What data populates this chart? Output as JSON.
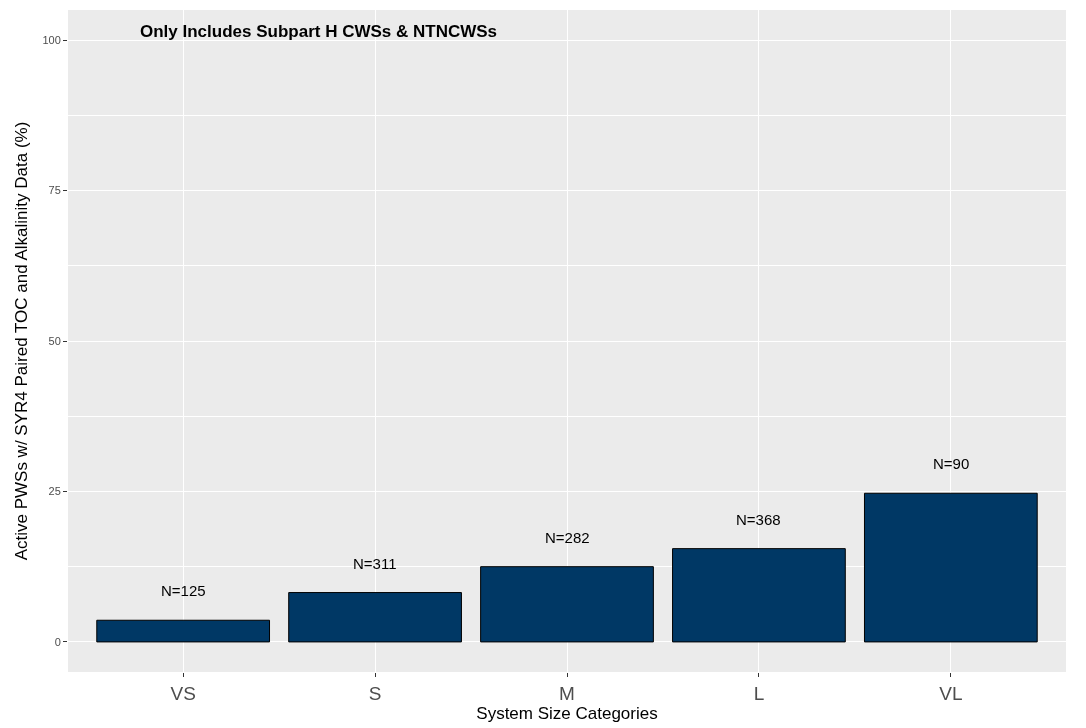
{
  "chart_data": {
    "type": "bar",
    "xlabel": "System Size Categories",
    "ylabel": "Active PWSs w/ SYR4 Paired TOC and Alkalinity Data (%)",
    "annotations": [
      "Only Includes Subpart H CWSs & NTNCWSs",
      {
        "text": "N=125",
        "x": "VS",
        "y": 3.6
      },
      {
        "text": "N=311",
        "x": "S",
        "y": 8.2
      },
      {
        "text": "N=282",
        "x": "M",
        "y": 12.5
      },
      {
        "text": "N=368",
        "x": "L",
        "y": 15.5
      },
      {
        "text": "N=90",
        "x": "VL",
        "y": 24.7
      }
    ],
    "categories": [
      "VS",
      "S",
      "M",
      "L",
      "VL"
    ],
    "values": [
      3.6,
      8.2,
      12.5,
      15.5,
      24.7
    ],
    "color": "#003865",
    "ylim": [
      -5,
      105
    ],
    "yticks": [
      0,
      25,
      50,
      75,
      100
    ],
    "grid": true,
    "legend": false
  }
}
